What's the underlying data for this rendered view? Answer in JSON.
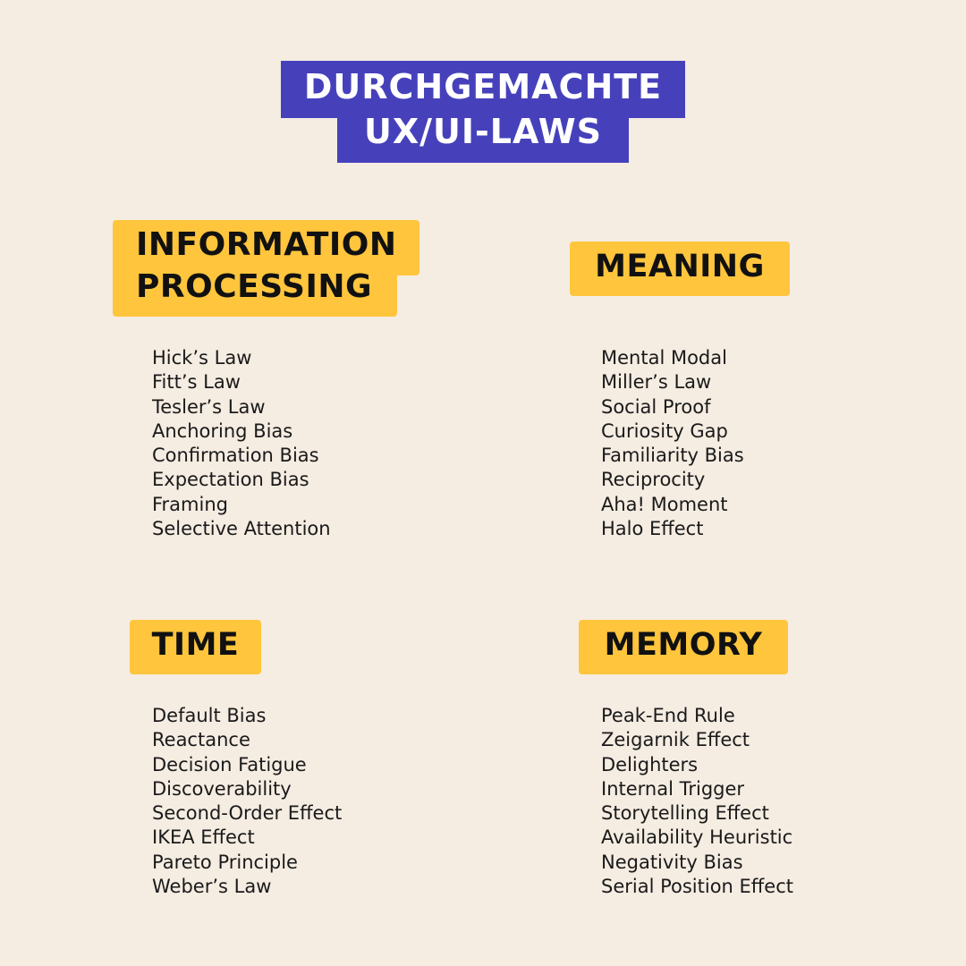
{
  "title": {
    "line1": "DURCHGEMACHTE",
    "line2": "UX/UI-LAWS"
  },
  "colors": {
    "background": "#f5ece2",
    "title_bg": "#4641bb",
    "tag_bg": "#ffc53d"
  },
  "sections": {
    "information_processing": {
      "heading_line1": "INFORMATION",
      "heading_line2": "PROCESSING",
      "items": [
        "Hick’s Law",
        "Fitt’s Law",
        "Tesler’s Law",
        "Anchoring Bias",
        "Confirmation Bias",
        "Expectation Bias",
        "Framing",
        "Selective Attention"
      ]
    },
    "meaning": {
      "heading": "MEANING",
      "items": [
        "Mental Modal",
        "Miller’s Law",
        "Social Proof",
        "Curiosity Gap",
        "Familiarity Bias",
        "Reciprocity",
        "Aha! Moment",
        "Halo Effect"
      ]
    },
    "time": {
      "heading": "TIME",
      "items": [
        "Default Bias",
        "Reactance",
        "Decision Fatigue",
        "Discoverability",
        "Second-Order Effect",
        "IKEA Effect",
        "Pareto Principle",
        "Weber’s Law"
      ]
    },
    "memory": {
      "heading": "MEMORY",
      "items": [
        "Peak-End Rule",
        "Zeigarnik Effect",
        "Delighters",
        "Internal Trigger",
        "Storytelling Effect",
        "Availability Heuristic",
        "Negativity Bias",
        "Serial Position Effect"
      ]
    }
  }
}
